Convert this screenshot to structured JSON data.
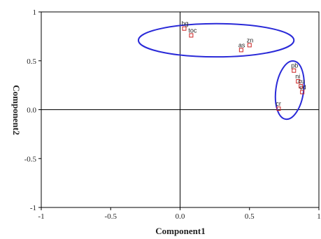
{
  "chart_data": {
    "type": "scatter",
    "title": "",
    "xlabel": "Component1",
    "ylabel": "Component2",
    "xlim": [
      -1,
      1
    ],
    "ylim": [
      -1,
      1
    ],
    "x_ticks": [
      "-1",
      "-0.5",
      "0.0",
      "0.5",
      "1"
    ],
    "y_ticks": [
      "-1",
      "-0.5",
      "0.0",
      "0.5",
      "1"
    ],
    "grid": false,
    "reference_lines": {
      "x": 0,
      "y": 0
    },
    "colors": {
      "points": "#cc2222",
      "ellipses": "#2a2ad8",
      "axes": "#000000"
    },
    "points": [
      {
        "label": "hg",
        "x": 0.03,
        "y": 0.83
      },
      {
        "label": "toc",
        "x": 0.08,
        "y": 0.76
      },
      {
        "label": "as",
        "x": 0.44,
        "y": 0.61
      },
      {
        "label": "zn",
        "x": 0.5,
        "y": 0.66
      },
      {
        "label": "pb",
        "x": 0.82,
        "y": 0.4
      },
      {
        "label": "ni",
        "x": 0.85,
        "y": 0.29
      },
      {
        "label": "cu",
        "x": 0.87,
        "y": 0.24
      },
      {
        "label": "cd",
        "x": 0.88,
        "y": 0.18
      },
      {
        "label": "cr",
        "x": 0.71,
        "y": 0.01
      }
    ],
    "clusters": [
      {
        "members": [
          "hg",
          "toc",
          "as",
          "zn"
        ],
        "cx": 0.26,
        "cy": 0.71,
        "rx": 0.56,
        "ry": 0.17,
        "rotate": 0
      },
      {
        "members": [
          "pb",
          "ni",
          "cu",
          "cd",
          "cr"
        ],
        "cx": 0.79,
        "cy": 0.2,
        "rx": 0.1,
        "ry": 0.3,
        "rotate": 8
      }
    ]
  }
}
